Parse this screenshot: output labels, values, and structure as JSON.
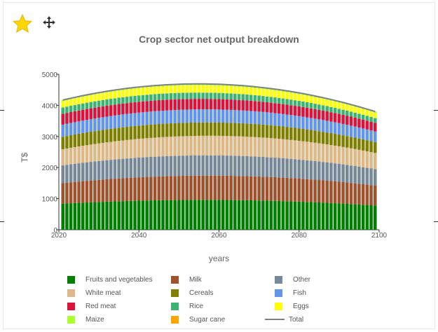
{
  "colors": {
    "fruits": "#008000",
    "milk": "#a0522d",
    "other": "#778899",
    "white_meat": "#deb887",
    "cereals": "#808000",
    "fish": "#6495ed",
    "red_meat": "#dc143c",
    "rice": "#3cb371",
    "eggs": "#ffff00",
    "maize": "#adff2f",
    "sugar_cane": "#ffa500",
    "total": "#808080"
  },
  "toolbar": {
    "favorite_icon": "star-icon",
    "move_icon": "move-icon"
  },
  "chart_data": {
    "type": "bar",
    "stacked": true,
    "title": "Crop sector net output breakdown",
    "xlabel": "years",
    "ylabel": "T$",
    "xlim": [
      2020,
      2100
    ],
    "ylim": [
      0,
      5000
    ],
    "x_ticks": [
      "2020",
      "2040",
      "2060",
      "2080",
      "2100"
    ],
    "y_ticks": [
      "0",
      "1000",
      "2000",
      "3000",
      "4000",
      "5000"
    ],
    "x_start": 2021,
    "x_end": 2099,
    "grid": false,
    "legend_position": "bottom",
    "series": [
      {
        "name": "Fruits and vegetables",
        "color_key": "fruits",
        "anchors": [
          [
            2021,
            840
          ],
          [
            2055,
            960
          ],
          [
            2099,
            780
          ]
        ]
      },
      {
        "name": "Milk",
        "color_key": "milk",
        "anchors": [
          [
            2021,
            660
          ],
          [
            2055,
            780
          ],
          [
            2099,
            640
          ]
        ]
      },
      {
        "name": "Other",
        "color_key": "other",
        "anchors": [
          [
            2021,
            570
          ],
          [
            2055,
            650
          ],
          [
            2099,
            530
          ]
        ]
      },
      {
        "name": "White meat",
        "color_key": "white_meat",
        "anchors": [
          [
            2021,
            520
          ],
          [
            2055,
            630
          ],
          [
            2099,
            520
          ]
        ]
      },
      {
        "name": "Cereals",
        "color_key": "cereals",
        "anchors": [
          [
            2021,
            400
          ],
          [
            2055,
            430
          ],
          [
            2099,
            350
          ]
        ]
      },
      {
        "name": "Fish",
        "color_key": "fish",
        "anchors": [
          [
            2021,
            390
          ],
          [
            2055,
            420
          ],
          [
            2099,
            340
          ]
        ]
      },
      {
        "name": "Red meat",
        "color_key": "red_meat",
        "anchors": [
          [
            2021,
            350
          ],
          [
            2055,
            340
          ],
          [
            2099,
            280
          ]
        ]
      },
      {
        "name": "Rice",
        "color_key": "rice",
        "anchors": [
          [
            2021,
            200
          ],
          [
            2055,
            200
          ],
          [
            2099,
            150
          ]
        ]
      },
      {
        "name": "Eggs",
        "color_key": "eggs",
        "anchors": [
          [
            2021,
            200
          ],
          [
            2055,
            230
          ],
          [
            2099,
            170
          ]
        ]
      },
      {
        "name": "Maize",
        "color_key": "maize",
        "anchors": [
          [
            2021,
            30
          ],
          [
            2055,
            40
          ],
          [
            2099,
            30
          ]
        ]
      },
      {
        "name": "Sugar cane",
        "color_key": "sugar_cane",
        "anchors": [
          [
            2021,
            10
          ],
          [
            2055,
            10
          ],
          [
            2099,
            10
          ]
        ]
      }
    ],
    "total": {
      "name": "Total",
      "color_key": "total",
      "type": "line"
    }
  }
}
